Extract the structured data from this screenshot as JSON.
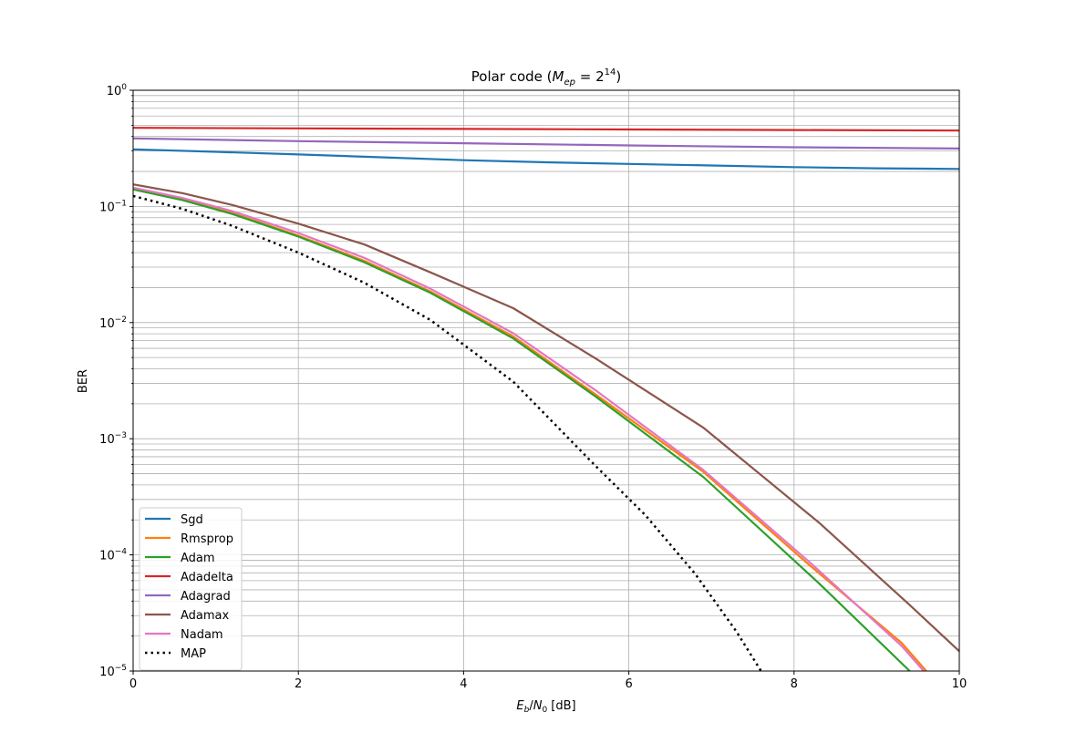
{
  "chart_data": {
    "type": "line",
    "title": "Polar code (M_ep = 2^14)",
    "title_parts": {
      "prefix": "Polar code (",
      "var": "M",
      "var_sub": "ep",
      "eq": " = 2",
      "exp": "14",
      "suffix": ")"
    },
    "xlabel": "E_b/N_0 [dB]",
    "xlabel_parts": {
      "e": "E",
      "e_sub": "b",
      "slash": "/",
      "n": "N",
      "n_sub": "0",
      "unit": " [dB]"
    },
    "ylabel": "BER",
    "xlim": [
      0,
      10
    ],
    "ylim": [
      1e-05,
      1
    ],
    "yscale": "log",
    "grid": true,
    "legend_position": "lower-left",
    "x_ticks": [
      {
        "value": 0,
        "label": "0"
      },
      {
        "value": 2,
        "label": "2"
      },
      {
        "value": 4,
        "label": "4"
      },
      {
        "value": 6,
        "label": "6"
      },
      {
        "value": 8,
        "label": "8"
      },
      {
        "value": 10,
        "label": "10"
      }
    ],
    "y_ticks": [
      {
        "value": 1,
        "base": "10",
        "exp": "0"
      },
      {
        "value": 0.1,
        "base": "10",
        "exp": "−1"
      },
      {
        "value": 0.01,
        "base": "10",
        "exp": "−2"
      },
      {
        "value": 0.001,
        "base": "10",
        "exp": "−3"
      },
      {
        "value": 0.0001,
        "base": "10",
        "exp": "−4"
      },
      {
        "value": 1e-05,
        "base": "10",
        "exp": "−5"
      }
    ],
    "series": [
      {
        "name": "Sgd",
        "color": "#1f77b4",
        "style": "solid",
        "x": [
          0,
          1,
          2,
          3,
          4,
          5,
          6,
          7,
          8,
          9,
          10
        ],
        "y": [
          0.31,
          0.295,
          0.28,
          0.265,
          0.25,
          0.24,
          0.232,
          0.225,
          0.218,
          0.213,
          0.21
        ]
      },
      {
        "name": "Rmsprop",
        "color": "#ff7f0e",
        "style": "solid",
        "x": [
          0,
          0.6,
          1.2,
          2.0,
          2.8,
          3.6,
          4.6,
          5.6,
          6.9,
          8.2,
          9.3,
          9.6
        ],
        "y": [
          0.14,
          0.115,
          0.088,
          0.056,
          0.034,
          0.0185,
          0.0076,
          0.0024,
          0.00052,
          8e-05,
          1.75e-05,
          1e-05
        ]
      },
      {
        "name": "Adam",
        "color": "#2ca02c",
        "style": "solid",
        "x": [
          0,
          0.6,
          1.2,
          2.0,
          2.8,
          3.6,
          4.6,
          5.6,
          6.9,
          8.3,
          9.4
        ],
        "y": [
          0.14,
          0.113,
          0.086,
          0.055,
          0.033,
          0.018,
          0.0073,
          0.0023,
          0.00047,
          5.7e-05,
          1e-05
        ]
      },
      {
        "name": "Adadelta",
        "color": "#d62728",
        "style": "solid",
        "x": [
          0,
          2,
          4,
          6,
          8,
          10
        ],
        "y": [
          0.475,
          0.47,
          0.465,
          0.46,
          0.455,
          0.45
        ]
      },
      {
        "name": "Adagrad",
        "color": "#9467bd",
        "style": "solid",
        "x": [
          0,
          2,
          4,
          6,
          8,
          10
        ],
        "y": [
          0.385,
          0.365,
          0.35,
          0.335,
          0.323,
          0.315
        ]
      },
      {
        "name": "Adamax",
        "color": "#8c564b",
        "style": "solid",
        "x": [
          0,
          0.6,
          1.2,
          2.0,
          2.8,
          3.6,
          4.6,
          5.6,
          6.9,
          8.3,
          9.4,
          10
        ],
        "y": [
          0.155,
          0.13,
          0.103,
          0.071,
          0.047,
          0.027,
          0.0133,
          0.0049,
          0.00125,
          0.00019,
          3.7e-05,
          1.48e-05
        ]
      },
      {
        "name": "Nadam",
        "color": "#e377c2",
        "style": "solid",
        "x": [
          0,
          0.6,
          1.2,
          2.0,
          2.8,
          3.6,
          4.6,
          5.6,
          6.9,
          8.2,
          9.3,
          9.57
        ],
        "y": [
          0.145,
          0.118,
          0.091,
          0.059,
          0.036,
          0.0195,
          0.0081,
          0.0026,
          0.00054,
          8.5e-05,
          1.65e-05,
          1e-05
        ]
      },
      {
        "name": "MAP",
        "color": "#000000",
        "style": "dotted",
        "x": [
          0,
          0.6,
          1.2,
          2.0,
          2.8,
          3.6,
          4.6,
          5.6,
          6.2,
          6.8,
          7.3,
          7.6
        ],
        "y": [
          0.123,
          0.095,
          0.068,
          0.04,
          0.022,
          0.0105,
          0.0031,
          0.00058,
          0.00022,
          6.9e-05,
          2.2e-05,
          1e-05
        ]
      }
    ]
  }
}
